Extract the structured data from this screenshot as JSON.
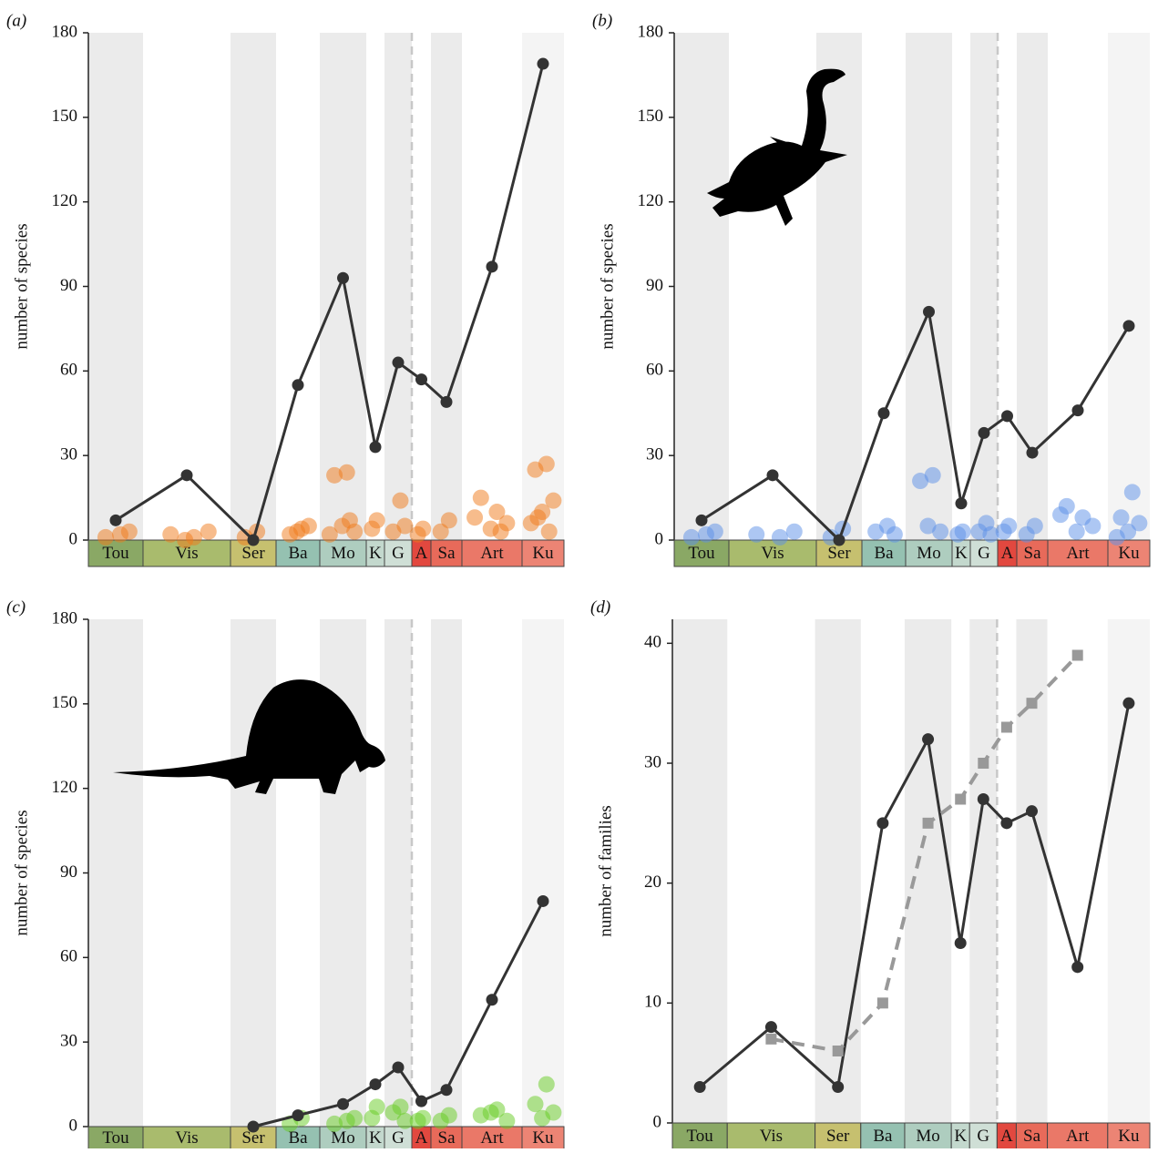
{
  "chart_data": [
    {
      "type": "line",
      "title": "(a)",
      "y_label": "number of species",
      "categories": [
        "Tou",
        "Vis",
        "Ser",
        "Ba",
        "Mo",
        "K",
        "G",
        "A",
        "Sa",
        "Art",
        "Ku"
      ],
      "stage_colors": [
        "#8aa865",
        "#a9bb6d",
        "#c6c06f",
        "#95c1b1",
        "#aecdbf",
        "#c3d8cd",
        "#cfdfd6",
        "#e2483f",
        "#e86a5a",
        "#ea7868",
        "#ec8474"
      ],
      "ylim": [
        0,
        180
      ],
      "yticks": [
        0,
        30,
        60,
        90,
        120,
        150,
        180
      ],
      "series": [
        {
          "color": "#333333",
          "marker": "circle",
          "dash": false,
          "values": [
            7,
            23,
            0,
            55,
            93,
            33,
            63,
            57,
            49,
            97,
            169
          ]
        }
      ],
      "points": {
        "color": "#f07a1a",
        "stages": [
          "Tou",
          "Tou",
          "Tou",
          "Vis",
          "Vis",
          "Vis",
          "Vis",
          "Ser",
          "Ser",
          "Ba",
          "Ba",
          "Ba",
          "Ba",
          "Mo",
          "Mo",
          "Mo",
          "Mo",
          "Mo",
          "Mo",
          "K",
          "K",
          "G",
          "G",
          "G",
          "A",
          "A",
          "Sa",
          "Sa",
          "Art",
          "Art",
          "Art",
          "Art",
          "Art",
          "Art",
          "Ku",
          "Ku",
          "Ku",
          "Ku",
          "Ku",
          "Ku",
          "Ku"
        ],
        "values": [
          2,
          1,
          3,
          1,
          2,
          3,
          0,
          3,
          1,
          4,
          2,
          5,
          3,
          24,
          23,
          3,
          5,
          2,
          7,
          7,
          4,
          14,
          3,
          5,
          4,
          2,
          7,
          3,
          10,
          15,
          6,
          4,
          8,
          3,
          27,
          25,
          14,
          10,
          6,
          3,
          8
        ]
      }
    },
    {
      "type": "line",
      "title": "(b)",
      "y_label": "number of species",
      "categories": [
        "Tou",
        "Vis",
        "Ser",
        "Ba",
        "Mo",
        "K",
        "G",
        "A",
        "Sa",
        "Art",
        "Ku"
      ],
      "stage_colors": [
        "#8aa865",
        "#a9bb6d",
        "#c6c06f",
        "#95c1b1",
        "#aecdbf",
        "#c3d8cd",
        "#cfdfd6",
        "#e2483f",
        "#e86a5a",
        "#ea7868",
        "#ec8474"
      ],
      "ylim": [
        0,
        180
      ],
      "yticks": [
        0,
        30,
        60,
        90,
        120,
        150,
        180
      ],
      "series": [
        {
          "color": "#333333",
          "marker": "circle",
          "dash": false,
          "values": [
            7,
            23,
            0,
            45,
            81,
            13,
            38,
            44,
            31,
            46,
            76
          ]
        }
      ],
      "points": {
        "color": "#5b8fe8",
        "stages": [
          "Tou",
          "Tou",
          "Tou",
          "Vis",
          "Vis",
          "Vis",
          "Ser",
          "Ser",
          "Ba",
          "Ba",
          "Ba",
          "Mo",
          "Mo",
          "Mo",
          "Mo",
          "K",
          "K",
          "G",
          "G",
          "G",
          "A",
          "A",
          "Sa",
          "Sa",
          "Art",
          "Art",
          "Art",
          "Art",
          "Art",
          "Ku",
          "Ku",
          "Ku",
          "Ku",
          "Ku"
        ],
        "values": [
          2,
          1,
          3,
          1,
          2,
          3,
          4,
          1,
          5,
          3,
          2,
          23,
          21,
          3,
          5,
          3,
          2,
          6,
          3,
          2,
          5,
          3,
          5,
          2,
          8,
          12,
          5,
          3,
          9,
          17,
          8,
          6,
          3,
          1
        ]
      }
    },
    {
      "type": "line",
      "title": "(c)",
      "y_label": "number of species",
      "categories": [
        "Tou",
        "Vis",
        "Ser",
        "Ba",
        "Mo",
        "K",
        "G",
        "A",
        "Sa",
        "Art",
        "Ku"
      ],
      "stage_colors": [
        "#8aa865",
        "#a9bb6d",
        "#c6c06f",
        "#95c1b1",
        "#aecdbf",
        "#c3d8cd",
        "#cfdfd6",
        "#e2483f",
        "#e86a5a",
        "#ea7868",
        "#ec8474"
      ],
      "ylim": [
        0,
        180
      ],
      "yticks": [
        0,
        30,
        60,
        90,
        120,
        150,
        180
      ],
      "series": [
        {
          "color": "#333333",
          "marker": "circle",
          "dash": false,
          "values": [
            null,
            null,
            0,
            4,
            8,
            15,
            21,
            9,
            13,
            45,
            80
          ]
        }
      ],
      "points": {
        "color": "#66cc22",
        "stages": [
          "Ba",
          "Ba",
          "Mo",
          "Mo",
          "Mo",
          "K",
          "K",
          "G",
          "G",
          "G",
          "A",
          "A",
          "Sa",
          "Sa",
          "Art",
          "Art",
          "Art",
          "Art",
          "Ku",
          "Ku",
          "Ku",
          "Ku"
        ],
        "values": [
          3,
          1,
          2,
          1,
          3,
          7,
          3,
          7,
          5,
          2,
          3,
          2,
          4,
          2,
          6,
          4,
          2,
          5,
          15,
          8,
          5,
          3
        ]
      }
    },
    {
      "type": "line",
      "title": "(d)",
      "y_label": "number of families",
      "categories": [
        "Tou",
        "Vis",
        "Ser",
        "Ba",
        "Mo",
        "K",
        "G",
        "A",
        "Sa",
        "Art",
        "Ku"
      ],
      "stage_colors": [
        "#8aa865",
        "#a9bb6d",
        "#c6c06f",
        "#95c1b1",
        "#aecdbf",
        "#c3d8cd",
        "#cfdfd6",
        "#e2483f",
        "#e86a5a",
        "#ea7868",
        "#ec8474"
      ],
      "ylim": [
        0,
        42
      ],
      "yticks": [
        0,
        10,
        20,
        30,
        40
      ],
      "series": [
        {
          "color": "#333333",
          "marker": "circle",
          "dash": false,
          "values": [
            3,
            8,
            3,
            25,
            32,
            15,
            27,
            25,
            26,
            13,
            35
          ]
        },
        {
          "color": "#999999",
          "marker": "square",
          "dash": true,
          "values": [
            null,
            7,
            6,
            10,
            25,
            27,
            30,
            33,
            35,
            39,
            null
          ]
        }
      ]
    }
  ]
}
